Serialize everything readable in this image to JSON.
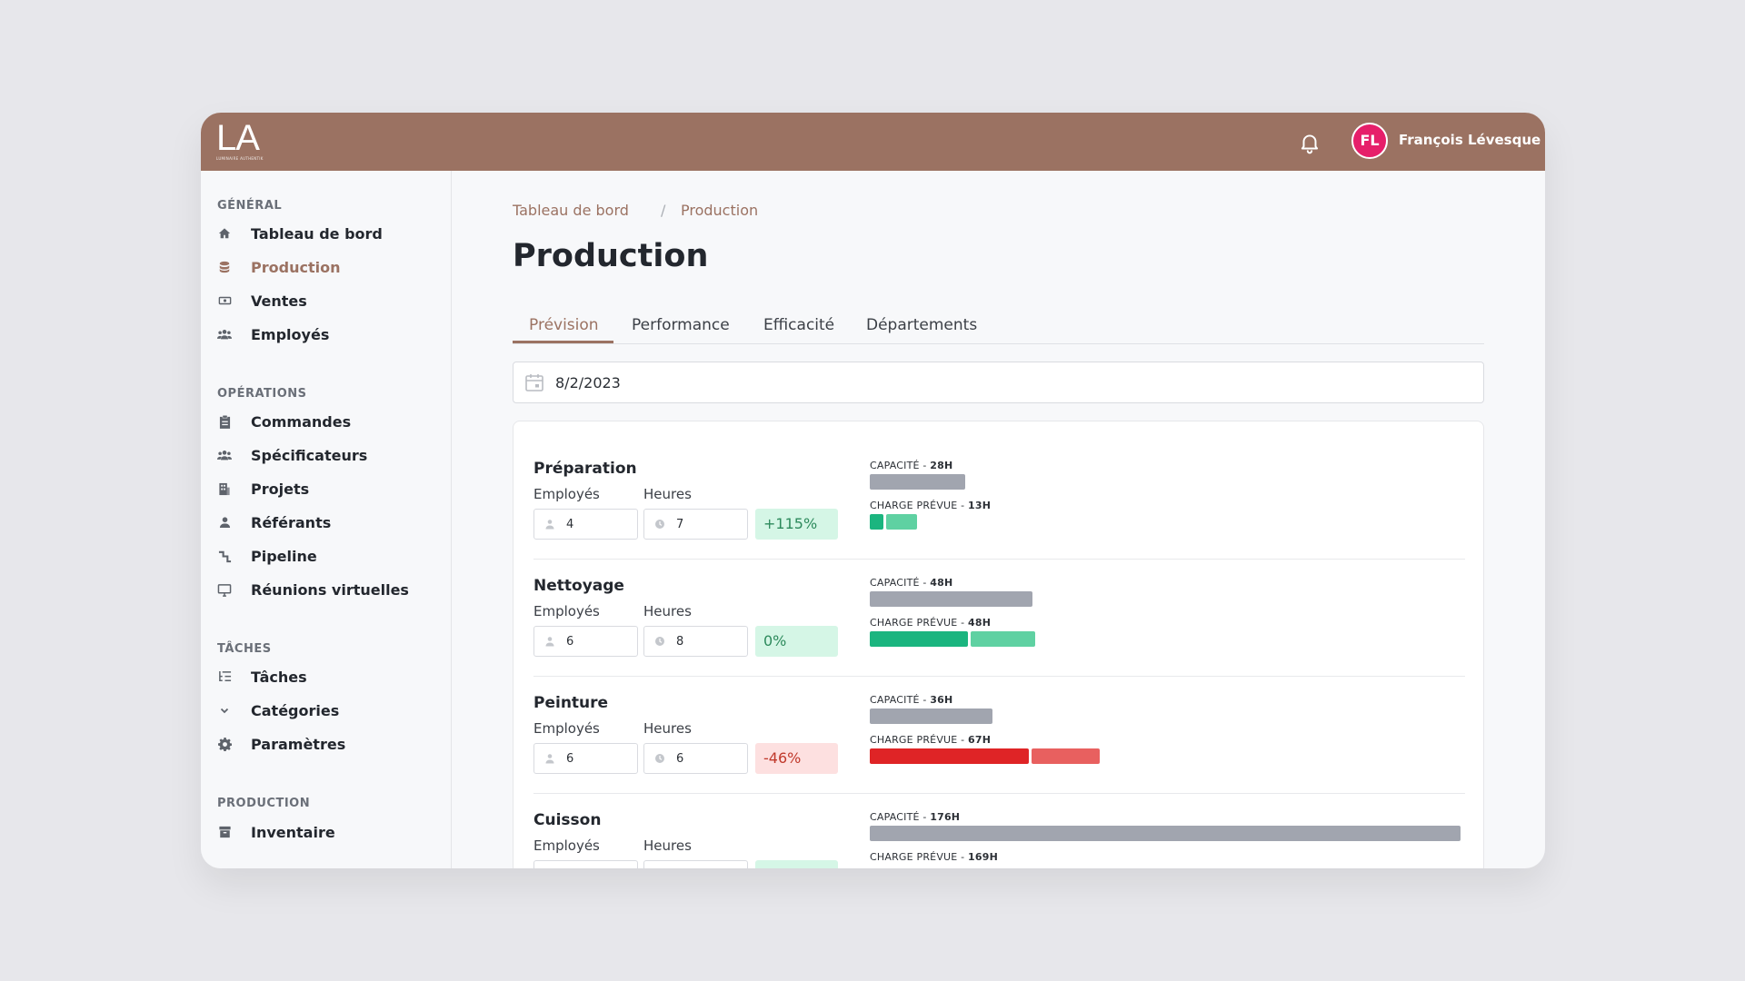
{
  "header": {
    "logo_text": "LA",
    "logo_subtext": "LUMINAIRE AUTHENTIK",
    "avatar_initials": "FL",
    "user_name": "François Lévesque"
  },
  "sidebar": {
    "sections": [
      {
        "title": "GÉNÉRAL",
        "items": [
          {
            "label": "Tableau de bord",
            "icon": "home-icon"
          },
          {
            "label": "Production",
            "icon": "database-icon",
            "active": true
          },
          {
            "label": "Ventes",
            "icon": "money-icon"
          },
          {
            "label": "Employés",
            "icon": "users-icon"
          }
        ]
      },
      {
        "title": "OPÉRATIONS",
        "items": [
          {
            "label": "Commandes",
            "icon": "clipboard-icon"
          },
          {
            "label": "Spécificateurs",
            "icon": "users-icon"
          },
          {
            "label": "Projets",
            "icon": "building-icon"
          },
          {
            "label": "Référants",
            "icon": "user-icon"
          },
          {
            "label": "Pipeline",
            "icon": "pipeline-icon"
          },
          {
            "label": "Réunions virtuelles",
            "icon": "monitor-icon"
          }
        ]
      },
      {
        "title": "TÂCHES",
        "items": [
          {
            "label": "Tâches",
            "icon": "tasks-icon"
          },
          {
            "label": "Catégories",
            "icon": "chevron-down-icon"
          },
          {
            "label": "Paramètres",
            "icon": "gear-icon"
          }
        ]
      },
      {
        "title": "PRODUCTION",
        "items": [
          {
            "label": "Inventaire",
            "icon": "inventory-icon"
          }
        ]
      }
    ]
  },
  "breadcrumb": {
    "items": [
      "Tableau de bord",
      "Production"
    ],
    "separator": "/"
  },
  "page_title": "Production",
  "tabs": [
    {
      "label": "Prévision",
      "active": true
    },
    {
      "label": "Performance"
    },
    {
      "label": "Efficacité"
    },
    {
      "label": "Départements"
    }
  ],
  "date_value": "8/2/2023",
  "labels": {
    "employees": "Employés",
    "hours": "Heures",
    "capacity_prefix": "CAPACITÉ - ",
    "charge_prefix": "CHARGE PRÉVUE - "
  },
  "departments": [
    {
      "name": "Préparation",
      "employees": "4",
      "hours": "7",
      "delta": "+115%",
      "status": "positive",
      "capacity": "28H",
      "charge": "13H"
    },
    {
      "name": "Nettoyage",
      "employees": "6",
      "hours": "8",
      "delta": "0%",
      "status": "positive",
      "capacity": "48H",
      "charge": "48H"
    },
    {
      "name": "Peinture",
      "employees": "6",
      "hours": "6",
      "delta": "-46%",
      "status": "negative",
      "capacity": "36H",
      "charge": "67H"
    },
    {
      "name": "Cuisson",
      "employees": "",
      "hours": "",
      "delta": "",
      "status": "positive",
      "capacity": "176H",
      "charge": "169H"
    }
  ],
  "colors": {
    "brand": "#9b7262",
    "avatar": "#e61f6a",
    "positive_bar": "#1bb57f",
    "negative_bar": "#df2426",
    "capacity_bar": "#a1a5af"
  }
}
